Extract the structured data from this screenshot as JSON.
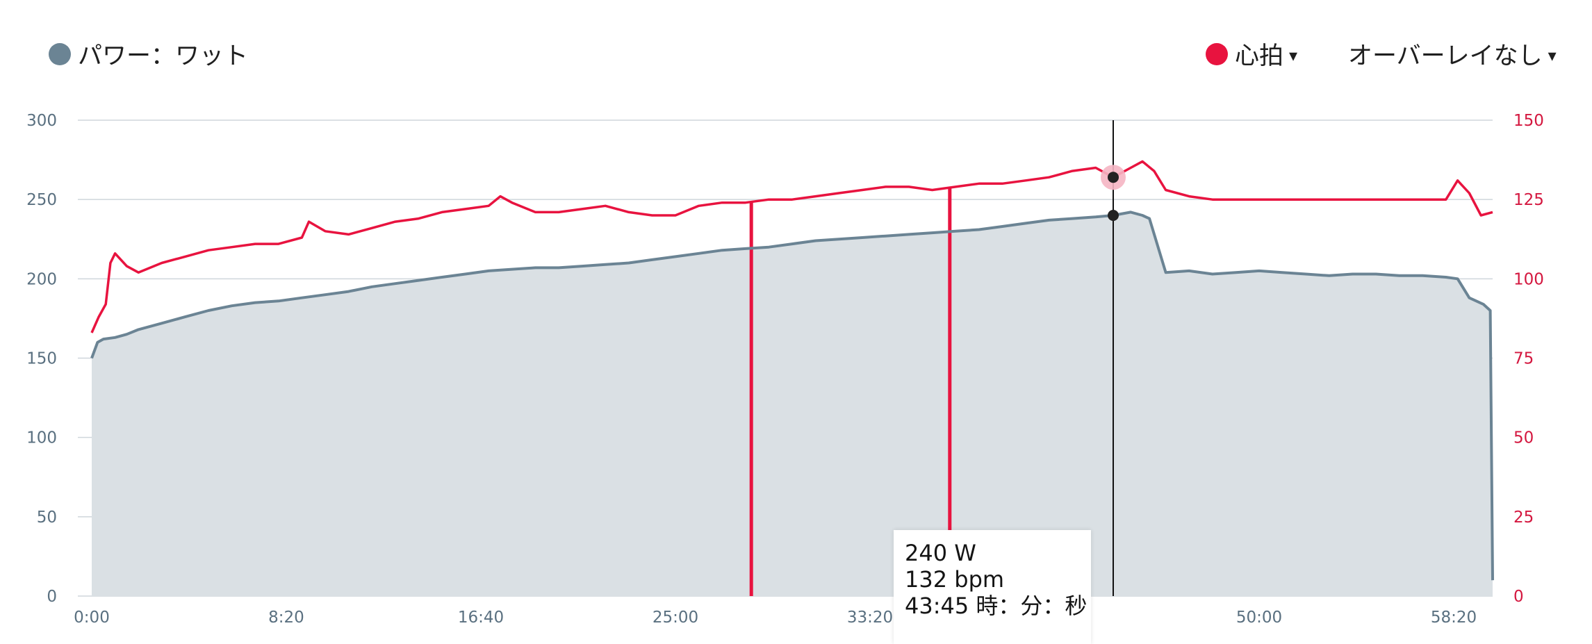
{
  "legend": {
    "power_label": "パワー：ワット",
    "power_color": "#6b8494",
    "hr_label": "心拍",
    "hr_color": "#e8133f",
    "hr_caret": "▾",
    "overlay_label": "オーバーレイなし",
    "overlay_caret": "▾"
  },
  "tooltip": {
    "power": "240 W",
    "hr": "132 bpm",
    "time": "43:45 時：分：秒"
  },
  "chart_data": {
    "type": "area",
    "x_unit": "minutes",
    "xlim": [
      0,
      60
    ],
    "x_ticks": [
      0,
      8.333,
      16.667,
      25,
      33.333,
      41.667,
      50,
      58.333
    ],
    "x_tick_labels": [
      "0:00",
      "8:20",
      "16:40",
      "25:00",
      "33:20",
      "41:40",
      "50:00",
      "58:20"
    ],
    "y_left": {
      "lim": [
        0,
        300
      ],
      "ticks": [
        0,
        50,
        100,
        150,
        200,
        250,
        300
      ]
    },
    "y_right": {
      "lim": [
        0,
        150
      ],
      "ticks": [
        0,
        25,
        50,
        75,
        100,
        125,
        150
      ]
    },
    "grid": true,
    "cursor_x": 43.75,
    "series": [
      {
        "name": "パワー：ワット",
        "axis": "left",
        "color": "#6b8494",
        "x": [
          0,
          0.25,
          0.5,
          1,
          1.5,
          2,
          3,
          4,
          5,
          6,
          7,
          8,
          9,
          10,
          11,
          12,
          13,
          14,
          15,
          16,
          17,
          18,
          19,
          20,
          21,
          22,
          23,
          24,
          25,
          26,
          27,
          28,
          29,
          30,
          31,
          32,
          33,
          34,
          35,
          36,
          37,
          38,
          39,
          40,
          41,
          42,
          43,
          43.75,
          44.5,
          45,
          45.3,
          46,
          47,
          48,
          49,
          50,
          51,
          52,
          53,
          54,
          55,
          56,
          57,
          58,
          58.5,
          59,
          59.6,
          59.9,
          60
        ],
        "values": [
          150,
          160,
          162,
          163,
          165,
          168,
          172,
          176,
          180,
          183,
          185,
          186,
          188,
          190,
          192,
          195,
          197,
          199,
          201,
          203,
          205,
          206,
          207,
          207,
          208,
          209,
          210,
          212,
          214,
          216,
          218,
          219,
          220,
          222,
          224,
          225,
          226,
          227,
          228,
          229,
          230,
          231,
          233,
          235,
          237,
          238,
          239,
          240,
          242,
          240,
          238,
          204,
          205,
          203,
          204,
          205,
          204,
          203,
          202,
          203,
          203,
          202,
          202,
          201,
          200,
          188,
          184,
          180,
          10
        ]
      },
      {
        "name": "心拍",
        "axis": "right",
        "color": "#e8133f",
        "x": [
          0,
          0.3,
          0.6,
          0.8,
          1,
          1.5,
          2,
          3,
          4,
          5,
          6,
          7,
          8,
          9,
          9.3,
          10,
          11,
          12,
          13,
          14,
          15,
          16,
          17,
          17.5,
          18,
          19,
          20,
          21,
          22,
          23,
          24,
          25,
          26,
          27,
          28,
          29,
          30,
          31,
          32,
          33,
          34,
          35,
          36,
          37,
          38,
          39,
          40,
          41,
          42,
          43,
          43.75,
          44.5,
          45,
          45.5,
          46,
          47,
          48,
          49,
          50,
          51,
          52,
          53,
          54,
          55,
          56,
          57,
          57.5,
          58,
          58.5,
          59,
          59.5,
          60
        ],
        "values": [
          83,
          88,
          92,
          105,
          108,
          104,
          102,
          105,
          107,
          109,
          110,
          111,
          111,
          113,
          118,
          115,
          114,
          116,
          118,
          119,
          121,
          122,
          123,
          126,
          124,
          121,
          121,
          122,
          123,
          121,
          120,
          120,
          123,
          124,
          124,
          125,
          125,
          126,
          127,
          128,
          129,
          129,
          128,
          129,
          130,
          130,
          131,
          132,
          134,
          135,
          132,
          135,
          137,
          134,
          128,
          126,
          125,
          125,
          125,
          125,
          125,
          125,
          125,
          125,
          125,
          125,
          125,
          125,
          131,
          127,
          120,
          121
        ]
      }
    ],
    "drops": [
      {
        "x": 28.25,
        "series": "心拍"
      },
      {
        "x": 36.75,
        "series": "心拍"
      }
    ]
  }
}
